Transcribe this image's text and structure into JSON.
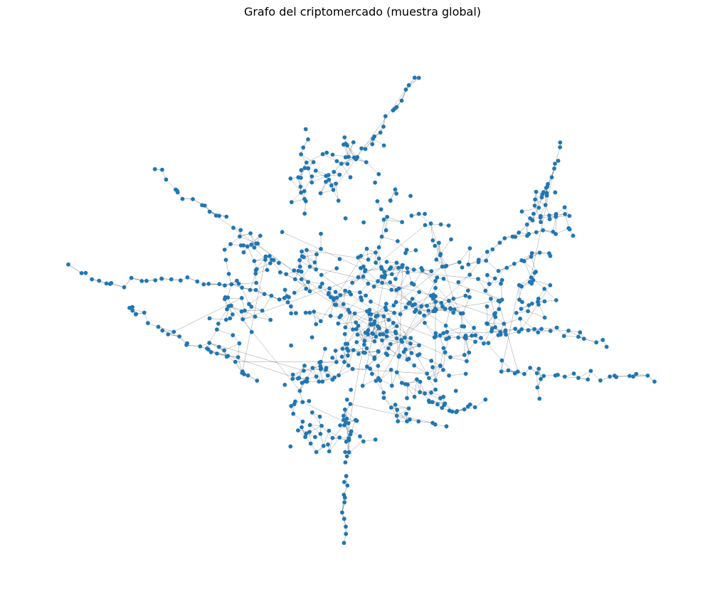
{
  "figure": {
    "title": "Grafo del criptomercado (muestra global)"
  },
  "graph": {
    "layout": "force-directed",
    "node_color": "#1f77b4",
    "edge_color": "#555555",
    "axes_visible": false
  }
}
